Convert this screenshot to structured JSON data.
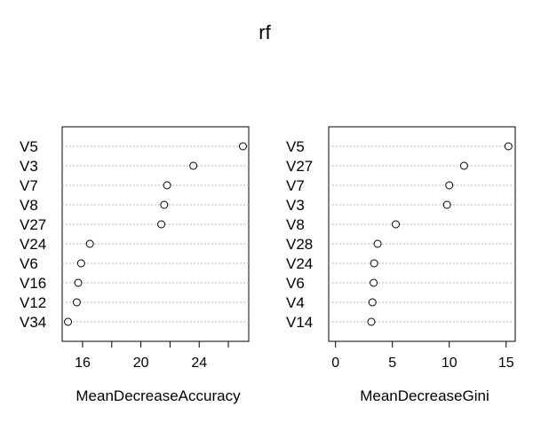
{
  "title": "rf",
  "chart_data": [
    {
      "type": "scatter",
      "variables": [
        "V5",
        "V3",
        "V7",
        "V8",
        "V27",
        "V24",
        "V6",
        "V16",
        "V12",
        "V34"
      ],
      "values": [
        27.0,
        23.6,
        21.8,
        21.6,
        21.4,
        16.5,
        15.9,
        15.7,
        15.6,
        15.0
      ],
      "xlabel": "MeanDecreaseAccuracy",
      "xlim": [
        14.6,
        27.4
      ],
      "xticks": [
        16,
        18,
        20,
        22,
        24,
        26
      ],
      "xtick_labels": [
        "16",
        "",
        "20",
        "",
        "24",
        ""
      ],
      "grid": "dotted horizontal"
    },
    {
      "type": "scatter",
      "variables": [
        "V5",
        "V27",
        "V7",
        "V3",
        "V8",
        "V28",
        "V24",
        "V6",
        "V4",
        "V14"
      ],
      "values": [
        15.2,
        11.3,
        10.0,
        9.8,
        5.3,
        3.7,
        3.4,
        3.35,
        3.25,
        3.15
      ],
      "xlabel": "MeanDecreaseGini",
      "xlim": [
        -0.6,
        15.8
      ],
      "xticks": [
        0,
        5,
        10,
        15
      ],
      "xtick_labels": [
        "0",
        "5",
        "10",
        "15"
      ],
      "grid": "dotted horizontal"
    }
  ]
}
